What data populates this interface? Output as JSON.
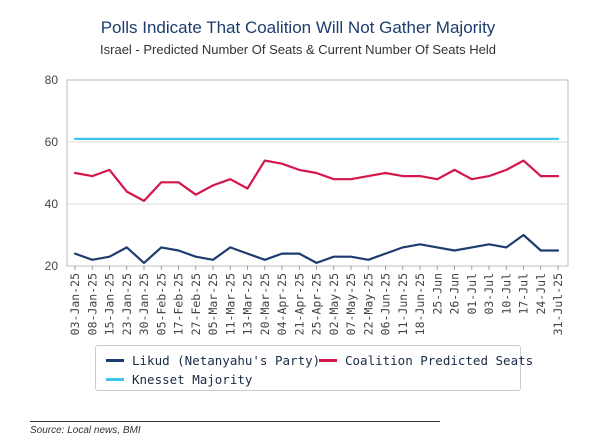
{
  "chart_data": {
    "type": "line",
    "title": "Polls Indicate That Coalition Will Not Gather Majority",
    "subtitle": "Israel - Predicted Number Of Seats & Current Number Of Seats Held",
    "xlabel": "",
    "ylabel": "",
    "ylim": [
      20,
      80
    ],
    "yticks": [
      20,
      40,
      60,
      80
    ],
    "grid": true,
    "legend_position": "bottom",
    "categories": [
      "03-Jan-25",
      "08-Jan-25",
      "15-Jan-25",
      "23-Jan-25",
      "30-Jan-25",
      "05-Feb-25",
      "17-Feb-25",
      "27-Feb-25",
      "05-Mar-25",
      "11-Mar-25",
      "13-Mar-25",
      "20-Mar-25",
      "04-Apr-25",
      "21-Apr-25",
      "25-Apr-25",
      "02-May-25",
      "07-May-25",
      "22-May-25",
      "06-Jun-25",
      "11-Jun-25",
      "18-Jun-25",
      "25-Jun",
      "26-Jun",
      "01-Jul",
      "03-Jul",
      "10-Jul",
      "17-Jul",
      "24-Jul",
      "31-Jul-25"
    ],
    "series": [
      {
        "name": "Likud (Netanyahu's Party)",
        "color": "#1d3d6e",
        "values": [
          24,
          22,
          23,
          26,
          21,
          26,
          25,
          23,
          22,
          26,
          24,
          22,
          24,
          24,
          21,
          23,
          23,
          22,
          24,
          26,
          27,
          26,
          25,
          26,
          27,
          26,
          30,
          25,
          25
        ]
      },
      {
        "name": "Coalition Predicted Seats",
        "color": "#d4164a",
        "values": [
          50,
          49,
          51,
          44,
          41,
          47,
          47,
          43,
          46,
          48,
          45,
          54,
          53,
          51,
          50,
          48,
          48,
          49,
          50,
          49,
          49,
          48,
          51,
          48,
          49,
          51,
          54,
          49,
          49
        ]
      },
      {
        "name": "Knesset Majority",
        "color": "#3fc6ef",
        "values": [
          61,
          61,
          61,
          61,
          61,
          61,
          61,
          61,
          61,
          61,
          61,
          61,
          61,
          61,
          61,
          61,
          61,
          61,
          61,
          61,
          61,
          61,
          61,
          61,
          61,
          61,
          61,
          61,
          61
        ]
      }
    ]
  },
  "source_note": "Source: Local news, BMI"
}
